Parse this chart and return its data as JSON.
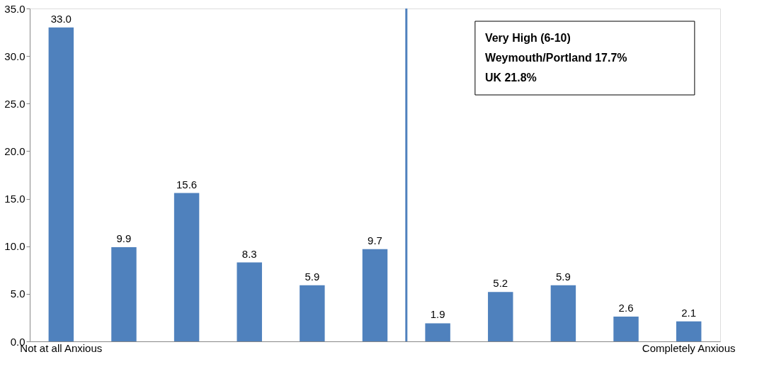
{
  "chart_data": {
    "type": "bar",
    "categories": [
      "Not at all Anxious",
      null,
      null,
      null,
      null,
      null,
      null,
      null,
      null,
      null,
      "Completely Anxious"
    ],
    "values": [
      33.0,
      9.9,
      15.6,
      8.3,
      5.9,
      9.7,
      1.9,
      5.2,
      5.9,
      2.6,
      2.1
    ],
    "value_labels": [
      "33.0",
      "9.9",
      "15.6",
      "8.3",
      "5.9",
      "9.7",
      "1.9",
      "5.2",
      "5.9",
      "2.6",
      "2.1"
    ],
    "color": "#4f81bd",
    "grid": false,
    "ylim": [
      0,
      35
    ],
    "yticks": [
      {
        "value": 0,
        "label": "0.0"
      },
      {
        "value": 5,
        "label": "5.0"
      },
      {
        "value": 10,
        "label": "10.0"
      },
      {
        "value": 15,
        "label": "15.0"
      },
      {
        "value": 20,
        "label": "20.0"
      },
      {
        "value": 25,
        "label": "25.0"
      },
      {
        "value": 30,
        "label": "30.0"
      },
      {
        "value": 35,
        "label": "35.0"
      }
    ],
    "annotations": [
      "Very High (6-10)",
      "Weymouth/Portland 17.7%",
      "UK 21.8%"
    ]
  }
}
